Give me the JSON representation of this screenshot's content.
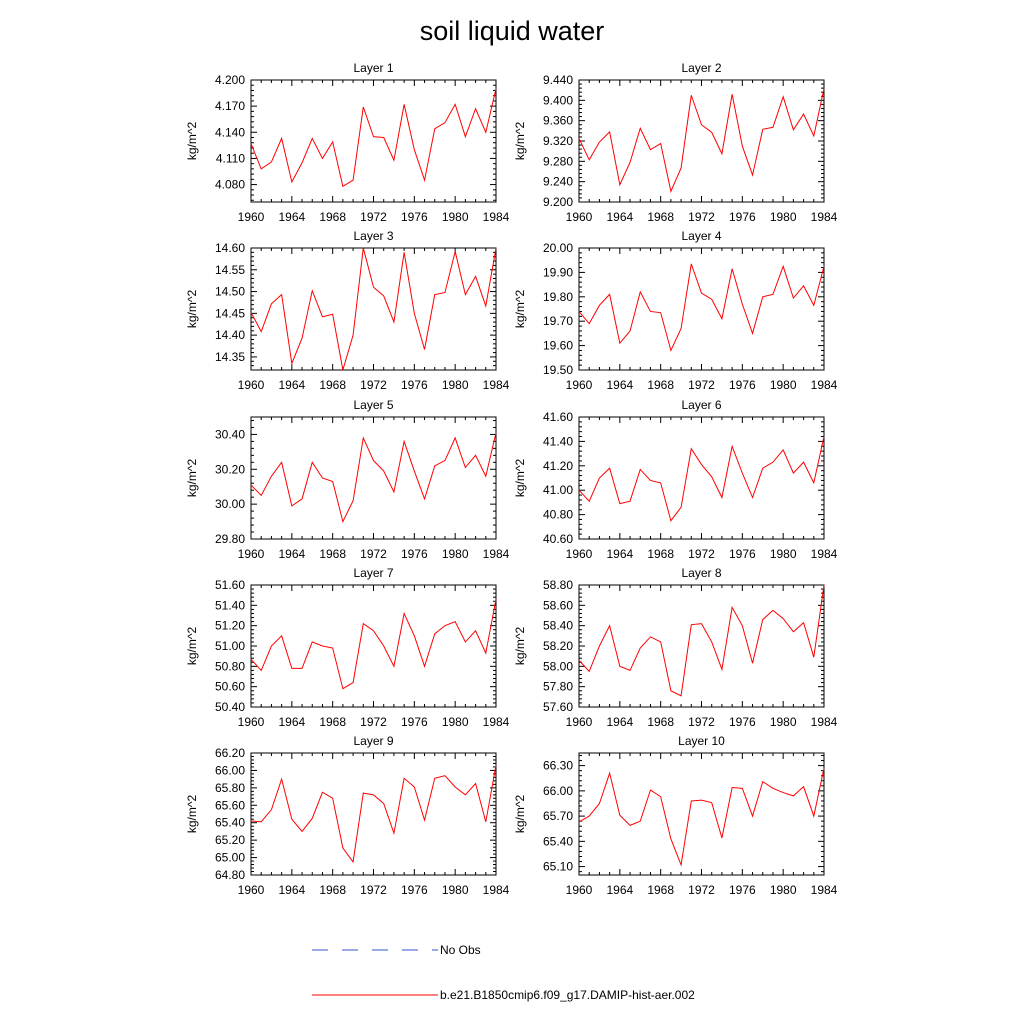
{
  "title": "soil liquid water",
  "colors": {
    "model": "#ff0000",
    "obs": "#3355cc",
    "axis": "#000000"
  },
  "legend": [
    {
      "label": "No Obs",
      "style": "dashed",
      "color": "#3355cc"
    },
    {
      "label": "b.e21.B1850cmip6.f09_g17.DAMIP-hist-aer.002",
      "style": "solid",
      "color": "#ff0000"
    }
  ],
  "chart_data": [
    {
      "type": "line",
      "title": "Layer 1",
      "ylabel": "kg/m^2",
      "xlim": [
        1960,
        1984
      ],
      "ylim": [
        4.06,
        4.2
      ],
      "xticks": [
        1960,
        1964,
        1968,
        1972,
        1976,
        1980,
        1984
      ],
      "xtick_labels": [
        "1960",
        "1964",
        "1968",
        "1972",
        "1976",
        "1980",
        "1984"
      ],
      "yticks": [
        4.08,
        4.11,
        4.14,
        4.17,
        4.2
      ],
      "ytick_labels": [
        "4.080",
        "4.110",
        "4.140",
        "4.170",
        "4.200"
      ],
      "series": [
        {
          "name": "b.e21.B1850cmip6.f09_g17.DAMIP-hist-aer.002",
          "x": [
            1960,
            1961,
            1962,
            1963,
            1964,
            1965,
            1966,
            1967,
            1968,
            1969,
            1970,
            1971,
            1972,
            1973,
            1974,
            1975,
            1976,
            1977,
            1978,
            1979,
            1980,
            1981,
            1982,
            1983,
            1984
          ],
          "values": [
            4.127,
            4.098,
            4.106,
            4.133,
            4.083,
            4.105,
            4.133,
            4.11,
            4.129,
            4.078,
            4.085,
            4.169,
            4.135,
            4.134,
            4.108,
            4.172,
            4.12,
            4.085,
            4.144,
            4.151,
            4.172,
            4.135,
            4.167,
            4.14,
            4.19
          ]
        }
      ]
    },
    {
      "type": "line",
      "title": "Layer 2",
      "ylabel": "kg/m^2",
      "xlim": [
        1960,
        1984
      ],
      "ylim": [
        9.2,
        9.44
      ],
      "xticks": [
        1960,
        1964,
        1968,
        1972,
        1976,
        1980,
        1984
      ],
      "xtick_labels": [
        "1960",
        "1964",
        "1968",
        "1972",
        "1976",
        "1980",
        "1984"
      ],
      "yticks": [
        9.2,
        9.24,
        9.28,
        9.32,
        9.36,
        9.4,
        9.44
      ],
      "ytick_labels": [
        "9.200",
        "9.240",
        "9.280",
        "9.320",
        "9.360",
        "9.400",
        "9.440"
      ],
      "series": [
        {
          "name": "b.e21.B1850cmip6.f09_g17.DAMIP-hist-aer.002",
          "x": [
            1960,
            1961,
            1962,
            1963,
            1964,
            1965,
            1966,
            1967,
            1968,
            1969,
            1970,
            1971,
            1972,
            1973,
            1974,
            1975,
            1976,
            1977,
            1978,
            1979,
            1980,
            1981,
            1982,
            1983,
            1984
          ],
          "values": [
            9.325,
            9.283,
            9.318,
            9.338,
            9.234,
            9.278,
            9.345,
            9.303,
            9.315,
            9.221,
            9.267,
            9.41,
            9.352,
            9.337,
            9.295,
            9.412,
            9.31,
            9.253,
            9.343,
            9.347,
            9.407,
            9.342,
            9.373,
            9.33,
            9.423
          ]
        }
      ]
    },
    {
      "type": "line",
      "title": "Layer 3",
      "ylabel": "kg/m^2",
      "xlim": [
        1960,
        1984
      ],
      "ylim": [
        14.32,
        14.6
      ],
      "xticks": [
        1960,
        1964,
        1968,
        1972,
        1976,
        1980,
        1984
      ],
      "xtick_labels": [
        "1960",
        "1964",
        "1968",
        "1972",
        "1976",
        "1980",
        "1984"
      ],
      "yticks": [
        14.35,
        14.4,
        14.45,
        14.5,
        14.55,
        14.6
      ],
      "ytick_labels": [
        "14.35",
        "14.40",
        "14.45",
        "14.50",
        "14.55",
        "14.60"
      ],
      "series": [
        {
          "name": "b.e21.B1850cmip6.f09_g17.DAMIP-hist-aer.002",
          "x": [
            1960,
            1961,
            1962,
            1963,
            1964,
            1965,
            1966,
            1967,
            1968,
            1969,
            1970,
            1971,
            1972,
            1973,
            1974,
            1975,
            1976,
            1977,
            1978,
            1979,
            1980,
            1981,
            1982,
            1983,
            1984
          ],
          "values": [
            14.452,
            14.408,
            14.472,
            14.493,
            14.335,
            14.393,
            14.502,
            14.442,
            14.448,
            14.32,
            14.4,
            14.6,
            14.51,
            14.49,
            14.43,
            14.59,
            14.45,
            14.367,
            14.493,
            14.498,
            14.592,
            14.493,
            14.535,
            14.467,
            14.6
          ]
        }
      ]
    },
    {
      "type": "line",
      "title": "Layer 4",
      "ylabel": "kg/m^2",
      "xlim": [
        1960,
        1984
      ],
      "ylim": [
        19.5,
        20.0
      ],
      "xticks": [
        1960,
        1964,
        1968,
        1972,
        1976,
        1980,
        1984
      ],
      "xtick_labels": [
        "1960",
        "1964",
        "1968",
        "1972",
        "1976",
        "1980",
        "1984"
      ],
      "yticks": [
        19.5,
        19.6,
        19.7,
        19.8,
        19.9,
        20.0
      ],
      "ytick_labels": [
        "19.50",
        "19.60",
        "19.70",
        "19.80",
        "19.90",
        "20.00"
      ],
      "series": [
        {
          "name": "b.e21.B1850cmip6.f09_g17.DAMIP-hist-aer.002",
          "x": [
            1960,
            1961,
            1962,
            1963,
            1964,
            1965,
            1966,
            1967,
            1968,
            1969,
            1970,
            1971,
            1972,
            1973,
            1974,
            1975,
            1976,
            1977,
            1978,
            1979,
            1980,
            1981,
            1982,
            1983,
            1984
          ],
          "values": [
            19.74,
            19.69,
            19.765,
            19.81,
            19.61,
            19.66,
            19.82,
            19.74,
            19.735,
            19.58,
            19.67,
            19.935,
            19.815,
            19.79,
            19.71,
            19.915,
            19.77,
            19.65,
            19.8,
            19.81,
            19.925,
            19.795,
            19.845,
            19.765,
            19.925
          ]
        }
      ]
    },
    {
      "type": "line",
      "title": "Layer 5",
      "ylabel": "kg/m^2",
      "xlim": [
        1960,
        1984
      ],
      "ylim": [
        29.8,
        30.5
      ],
      "xticks": [
        1960,
        1964,
        1968,
        1972,
        1976,
        1980,
        1984
      ],
      "xtick_labels": [
        "1960",
        "1964",
        "1968",
        "1972",
        "1976",
        "1980",
        "1984"
      ],
      "yticks": [
        29.8,
        30.0,
        30.2,
        30.4
      ],
      "ytick_labels": [
        "29.80",
        "30.00",
        "30.20",
        "30.40"
      ],
      "series": [
        {
          "name": "b.e21.B1850cmip6.f09_g17.DAMIP-hist-aer.002",
          "x": [
            1960,
            1961,
            1962,
            1963,
            1964,
            1965,
            1966,
            1967,
            1968,
            1969,
            1970,
            1971,
            1972,
            1973,
            1974,
            1975,
            1976,
            1977,
            1978,
            1979,
            1980,
            1981,
            1982,
            1983,
            1984
          ],
          "values": [
            30.11,
            30.05,
            30.16,
            30.24,
            29.99,
            30.03,
            30.24,
            30.15,
            30.13,
            29.9,
            30.02,
            30.38,
            30.25,
            30.19,
            30.07,
            30.36,
            30.19,
            30.03,
            30.22,
            30.25,
            30.38,
            30.21,
            30.28,
            30.16,
            30.41
          ]
        }
      ]
    },
    {
      "type": "line",
      "title": "Layer 6",
      "ylabel": "kg/m^2",
      "xlim": [
        1960,
        1984
      ],
      "ylim": [
        40.6,
        41.6
      ],
      "xticks": [
        1960,
        1964,
        1968,
        1972,
        1976,
        1980,
        1984
      ],
      "xtick_labels": [
        "1960",
        "1964",
        "1968",
        "1972",
        "1976",
        "1980",
        "1984"
      ],
      "yticks": [
        40.6,
        40.8,
        41.0,
        41.2,
        41.4,
        41.6
      ],
      "ytick_labels": [
        "40.60",
        "40.80",
        "41.00",
        "41.20",
        "41.40",
        "41.60"
      ],
      "series": [
        {
          "name": "b.e21.B1850cmip6.f09_g17.DAMIP-hist-aer.002",
          "x": [
            1960,
            1961,
            1962,
            1963,
            1964,
            1965,
            1966,
            1967,
            1968,
            1969,
            1970,
            1971,
            1972,
            1973,
            1974,
            1975,
            1976,
            1977,
            1978,
            1979,
            1980,
            1981,
            1982,
            1983,
            1984
          ],
          "values": [
            41.0,
            40.91,
            41.1,
            41.18,
            40.89,
            40.91,
            41.17,
            41.08,
            41.06,
            40.75,
            40.86,
            41.34,
            41.21,
            41.11,
            40.94,
            41.36,
            41.14,
            40.94,
            41.18,
            41.23,
            41.33,
            41.14,
            41.23,
            41.06,
            41.44
          ]
        }
      ]
    },
    {
      "type": "line",
      "title": "Layer 7",
      "ylabel": "kg/m^2",
      "xlim": [
        1960,
        1984
      ],
      "ylim": [
        50.4,
        51.6
      ],
      "xticks": [
        1960,
        1964,
        1968,
        1972,
        1976,
        1980,
        1984
      ],
      "xtick_labels": [
        "1960",
        "1964",
        "1968",
        "1972",
        "1976",
        "1980",
        "1984"
      ],
      "yticks": [
        50.4,
        50.6,
        50.8,
        51.0,
        51.2,
        51.4,
        51.6
      ],
      "ytick_labels": [
        "50.40",
        "50.60",
        "50.80",
        "51.00",
        "51.20",
        "51.40",
        "51.60"
      ],
      "series": [
        {
          "name": "b.e21.B1850cmip6.f09_g17.DAMIP-hist-aer.002",
          "x": [
            1960,
            1961,
            1962,
            1963,
            1964,
            1965,
            1966,
            1967,
            1968,
            1969,
            1970,
            1971,
            1972,
            1973,
            1974,
            1975,
            1976,
            1977,
            1978,
            1979,
            1980,
            1981,
            1982,
            1983,
            1984
          ],
          "values": [
            50.87,
            50.76,
            51.0,
            51.1,
            50.78,
            50.78,
            51.04,
            51.0,
            50.98,
            50.58,
            50.64,
            51.22,
            51.15,
            51.0,
            50.8,
            51.32,
            51.1,
            50.8,
            51.12,
            51.2,
            51.24,
            51.04,
            51.15,
            50.93,
            51.46
          ]
        }
      ]
    },
    {
      "type": "line",
      "title": "Layer 8",
      "ylabel": "kg/m^2",
      "xlim": [
        1960,
        1984
      ],
      "ylim": [
        57.6,
        58.8
      ],
      "xticks": [
        1960,
        1964,
        1968,
        1972,
        1976,
        1980,
        1984
      ],
      "xtick_labels": [
        "1960",
        "1964",
        "1968",
        "1972",
        "1976",
        "1980",
        "1984"
      ],
      "yticks": [
        57.6,
        57.8,
        58.0,
        58.2,
        58.4,
        58.6,
        58.8
      ],
      "ytick_labels": [
        "57.60",
        "57.80",
        "58.00",
        "58.20",
        "58.40",
        "58.60",
        "58.80"
      ],
      "series": [
        {
          "name": "b.e21.B1850cmip6.f09_g17.DAMIP-hist-aer.002",
          "x": [
            1960,
            1961,
            1962,
            1963,
            1964,
            1965,
            1966,
            1967,
            1968,
            1969,
            1970,
            1971,
            1972,
            1973,
            1974,
            1975,
            1976,
            1977,
            1978,
            1979,
            1980,
            1981,
            1982,
            1983,
            1984
          ],
          "values": [
            58.06,
            57.95,
            58.2,
            58.4,
            58.0,
            57.96,
            58.18,
            58.29,
            58.24,
            57.76,
            57.71,
            58.41,
            58.42,
            58.24,
            57.97,
            58.58,
            58.4,
            58.03,
            58.46,
            58.55,
            58.47,
            58.34,
            58.43,
            58.09,
            58.8
          ]
        }
      ]
    },
    {
      "type": "line",
      "title": "Layer 9",
      "ylabel": "kg/m^2",
      "xlim": [
        1960,
        1984
      ],
      "ylim": [
        64.8,
        66.2
      ],
      "xticks": [
        1960,
        1964,
        1968,
        1972,
        1976,
        1980,
        1984
      ],
      "xtick_labels": [
        "1960",
        "1964",
        "1968",
        "1972",
        "1976",
        "1980",
        "1984"
      ],
      "yticks": [
        64.8,
        65.0,
        65.2,
        65.4,
        65.6,
        65.8,
        66.0,
        66.2
      ],
      "ytick_labels": [
        "64.80",
        "65.00",
        "65.20",
        "65.40",
        "65.60",
        "65.80",
        "66.00",
        "66.20"
      ],
      "series": [
        {
          "name": "b.e21.B1850cmip6.f09_g17.DAMIP-hist-aer.002",
          "x": [
            1960,
            1961,
            1962,
            1963,
            1964,
            1965,
            1966,
            1967,
            1968,
            1969,
            1970,
            1971,
            1972,
            1973,
            1974,
            1975,
            1976,
            1977,
            1978,
            1979,
            1980,
            1981,
            1982,
            1983,
            1984
          ],
          "values": [
            65.42,
            65.41,
            65.55,
            65.9,
            65.44,
            65.3,
            65.45,
            65.75,
            65.68,
            65.11,
            64.95,
            65.74,
            65.72,
            65.62,
            65.28,
            65.91,
            65.81,
            65.43,
            65.91,
            65.94,
            65.81,
            65.72,
            65.85,
            65.41,
            66.06
          ]
        }
      ]
    },
    {
      "type": "line",
      "title": "Layer 10",
      "ylabel": "kg/m^2",
      "xlim": [
        1960,
        1984
      ],
      "ylim": [
        65.0,
        66.45
      ],
      "xticks": [
        1960,
        1964,
        1968,
        1972,
        1976,
        1980,
        1984
      ],
      "xtick_labels": [
        "1960",
        "1964",
        "1968",
        "1972",
        "1976",
        "1980",
        "1984"
      ],
      "yticks": [
        65.1,
        65.4,
        65.7,
        66.0,
        66.3
      ],
      "ytick_labels": [
        "65.10",
        "65.40",
        "65.70",
        "66.00",
        "66.30"
      ],
      "series": [
        {
          "name": "b.e21.B1850cmip6.f09_g17.DAMIP-hist-aer.002",
          "x": [
            1960,
            1961,
            1962,
            1963,
            1964,
            1965,
            1966,
            1967,
            1968,
            1969,
            1970,
            1971,
            1972,
            1973,
            1974,
            1975,
            1976,
            1977,
            1978,
            1979,
            1980,
            1981,
            1982,
            1983,
            1984
          ],
          "values": [
            65.63,
            65.7,
            65.85,
            66.21,
            65.71,
            65.59,
            65.64,
            66.01,
            65.93,
            65.43,
            65.12,
            65.88,
            65.89,
            65.86,
            65.44,
            66.04,
            66.03,
            65.7,
            66.11,
            66.03,
            65.98,
            65.94,
            66.05,
            65.7,
            66.27
          ]
        }
      ]
    }
  ]
}
